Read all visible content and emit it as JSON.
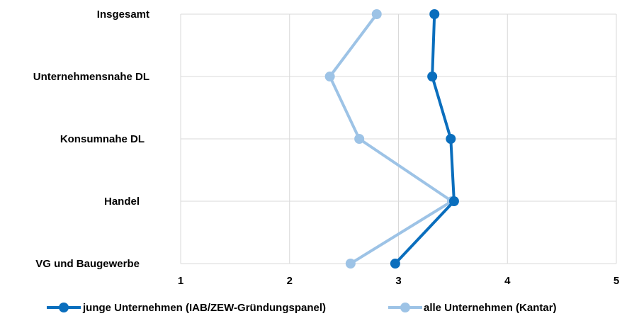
{
  "chart_data": {
    "type": "line",
    "orientation": "horizontal-categories",
    "categories": [
      "Insgesamt",
      "Unternehmensnahe DL",
      "Konsumnahe DL",
      "Handel",
      "VG und Baugewerbe"
    ],
    "series": [
      {
        "name": "junge Unternehmen (IAB/ZEW-Gründungspanel)",
        "color": "#0a6ebd",
        "values": [
          3.33,
          3.31,
          3.48,
          3.51,
          2.97
        ]
      },
      {
        "name": "alle Unternehmen (Kantar)",
        "color": "#9dc3e6",
        "values": [
          2.8,
          2.37,
          2.64,
          3.49,
          2.56
        ]
      }
    ],
    "xlim": [
      1,
      5
    ],
    "xticks": [
      "1",
      "2",
      "3",
      "4",
      "5"
    ],
    "grid": true,
    "legend_position": "bottom"
  }
}
